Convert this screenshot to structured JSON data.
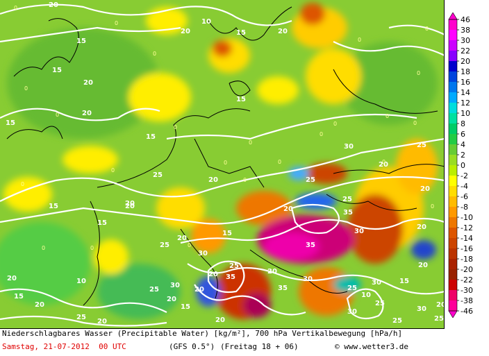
{
  "map": {
    "contour_labels": [
      "20",
      "10",
      "15",
      "20",
      "15",
      "20",
      "15",
      "20",
      "15",
      "20",
      "15",
      "25",
      "20",
      "15",
      "20",
      "25",
      "30",
      "20",
      "25",
      "20",
      "15",
      "20",
      "15",
      "20",
      "25",
      "30",
      "35",
      "30",
      "35",
      "20",
      "25",
      "30",
      "35",
      "20",
      "25",
      "30",
      "20",
      "15",
      "20",
      "25",
      "30",
      "10",
      "15",
      "20",
      "25",
      "20",
      "25",
      "30",
      "35",
      "20",
      "25",
      "20",
      "10",
      "15",
      "20",
      "25",
      "20",
      "30",
      "25",
      "20",
      "15",
      "20"
    ],
    "zero_label": "0"
  },
  "legend": {
    "labels": [
      "46",
      "38",
      "30",
      "22",
      "20",
      "18",
      "16",
      "14",
      "12",
      "10",
      "8",
      "6",
      "4",
      "2",
      "0",
      "-2",
      "-4",
      "-6",
      "-8",
      "-10",
      "-12",
      "-14",
      "-16",
      "-18",
      "-20",
      "-22",
      "-30",
      "-38",
      "-46"
    ],
    "colors": [
      "#ff00cc",
      "#ff00ff",
      "#cc00ff",
      "#8800ff",
      "#0000cc",
      "#0044dd",
      "#0077ee",
      "#00aaff",
      "#00dddd",
      "#00e0a0",
      "#00cc66",
      "#22cc44",
      "#66cc33",
      "#99dd22",
      "#bbee00",
      "#ffff00",
      "#ffdd00",
      "#ffbb00",
      "#ff9900",
      "#ee7700",
      "#dd5500",
      "#cc4400",
      "#bb3300",
      "#aa2200",
      "#992200",
      "#cc0000",
      "#ee0066",
      "#ff0099",
      "#ff00cc"
    ]
  },
  "footer": {
    "line1": "Niederschlagbares Wasser (Precipitable Water) [kg/m²], 700 hPa Vertikalbewegung [hPa/h]",
    "date": "Samstag, 21-07-2012  00 UTC",
    "model": "(GFS 0.5°)",
    "run": "(Freitag 18 + 06)",
    "copyright": "© www.wetter3.de"
  }
}
